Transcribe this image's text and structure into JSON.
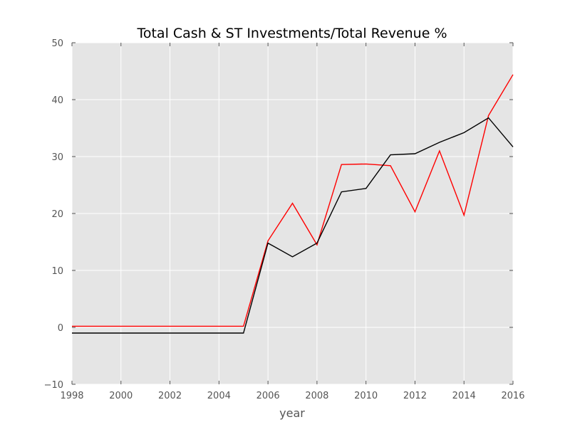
{
  "chart_data": {
    "type": "line",
    "title": "Total Cash & ST Investments/Total Revenue %",
    "xlabel": "year",
    "ylabel": "",
    "xlim": [
      1998,
      2016
    ],
    "ylim": [
      -10,
      50
    ],
    "grid": true,
    "x_ticks": [
      1998,
      2000,
      2002,
      2004,
      2006,
      2008,
      2010,
      2012,
      2014,
      2016
    ],
    "y_ticks": [
      -10,
      0,
      10,
      20,
      30,
      40,
      50
    ],
    "x_tick_labels": [
      "1998",
      "2000",
      "2002",
      "2004",
      "2006",
      "2008",
      "2010",
      "2012",
      "2014",
      "2016"
    ],
    "y_tick_labels": [
      "−10",
      "0",
      "10",
      "20",
      "30",
      "40",
      "50"
    ],
    "x": [
      1998,
      2005,
      2006,
      2007,
      2008,
      2009,
      2010,
      2011,
      2012,
      2013,
      2014,
      2015,
      2016
    ],
    "series": [
      {
        "color": "#ff0000",
        "values": [
          0.2,
          0.2,
          15.2,
          21.8,
          14.5,
          28.6,
          28.7,
          28.4,
          20.3,
          31.0,
          19.7,
          37.2,
          44.4
        ]
      },
      {
        "color": "#000000",
        "values": [
          -1.0,
          -1.0,
          14.8,
          12.4,
          14.8,
          23.8,
          24.4,
          30.3,
          30.5,
          32.5,
          34.2,
          36.8,
          31.7
        ]
      }
    ],
    "colors": {
      "plot_background": "#e5e5e5",
      "grid": "#ffffff",
      "tick_text": "#555555"
    }
  }
}
